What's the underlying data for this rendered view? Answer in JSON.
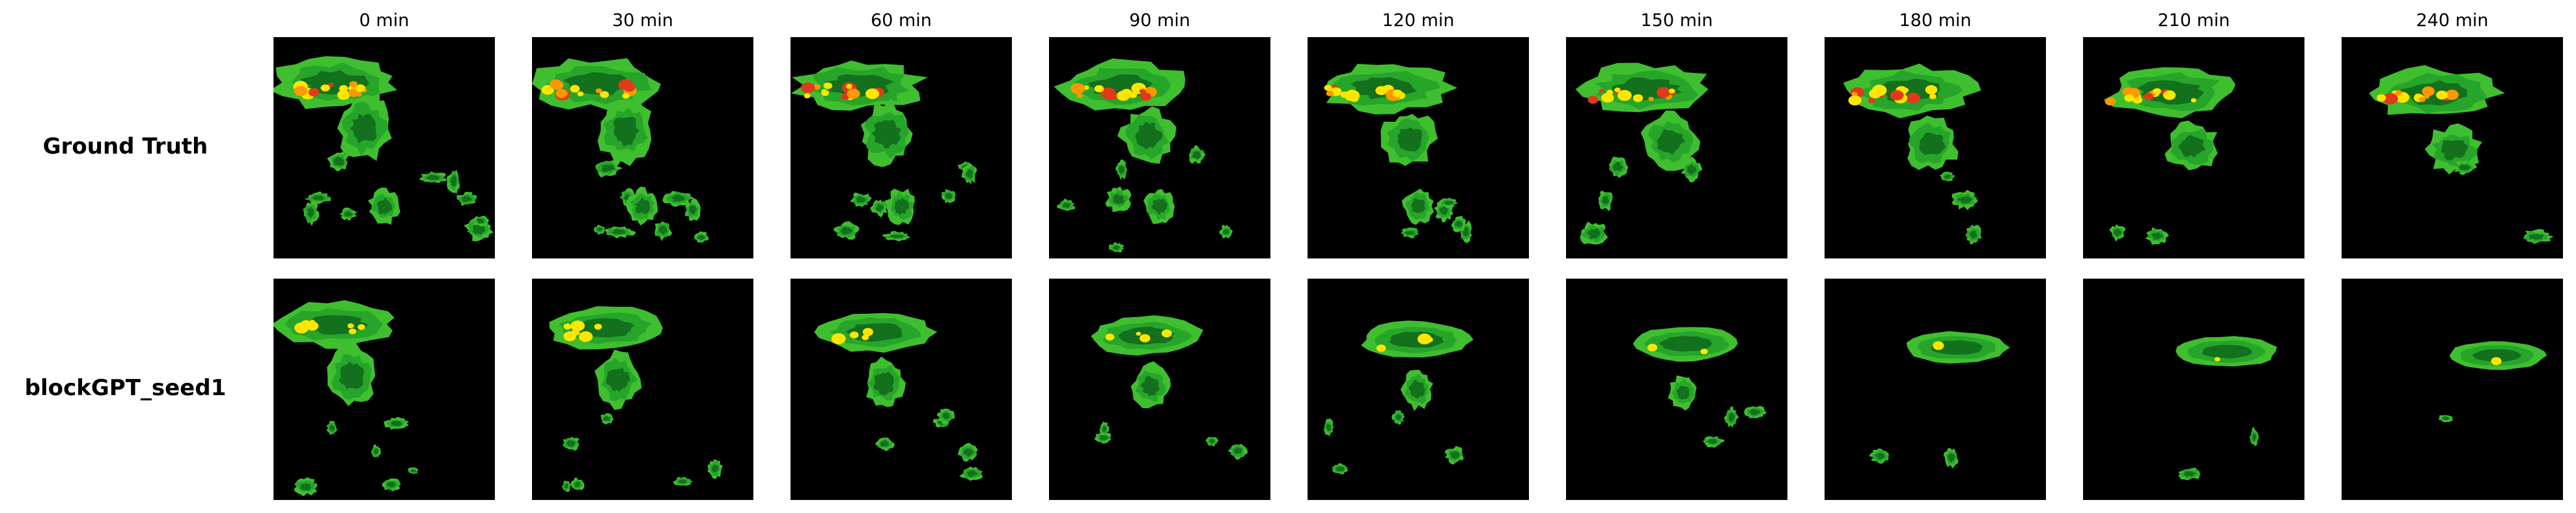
{
  "column_titles": [
    "0 min",
    "30 min",
    "60 min",
    "90 min",
    "120 min",
    "150 min",
    "180 min",
    "210 min",
    "240 min"
  ],
  "row_labels": [
    "Ground Truth",
    "blockGPT_seed1"
  ],
  "colors": {
    "background": "#000000",
    "echo_outline": "#3fbf2f",
    "echo_light": "#27a52a",
    "echo_dark": "#13701c",
    "echo_gray": "#5a5a5a",
    "echo_yellow": "#ffe600",
    "echo_orange": "#ff9800",
    "echo_red": "#e03a1a"
  }
}
